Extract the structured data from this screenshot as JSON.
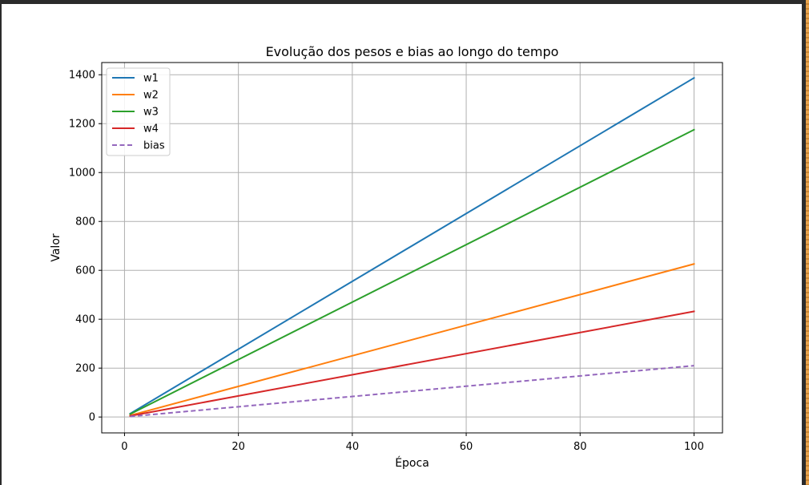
{
  "chart_data": {
    "type": "line",
    "title": "Evolução dos pesos e bias ao longo do tempo",
    "xlabel": "Época",
    "ylabel": "Valor",
    "x": [
      1,
      100
    ],
    "xlim": [
      -4,
      105
    ],
    "ylim": [
      -65,
      1450
    ],
    "xticks": [
      0,
      20,
      40,
      60,
      80,
      100
    ],
    "yticks": [
      0,
      200,
      400,
      600,
      800,
      1000,
      1200,
      1400
    ],
    "grid": true,
    "legend_position": "top-left",
    "series": [
      {
        "name": "w1",
        "values": [
          13.9,
          1387
        ],
        "color": "#1f77b4",
        "style": "solid"
      },
      {
        "name": "w2",
        "values": [
          6.3,
          626
        ],
        "color": "#ff7f0e",
        "style": "solid"
      },
      {
        "name": "w3",
        "values": [
          11.8,
          1175
        ],
        "color": "#2ca02c",
        "style": "solid"
      },
      {
        "name": "w4",
        "values": [
          4.3,
          432
        ],
        "color": "#d62728",
        "style": "solid"
      },
      {
        "name": "bias",
        "values": [
          2.1,
          210
        ],
        "color": "#9467bd",
        "style": "dashed"
      }
    ]
  }
}
